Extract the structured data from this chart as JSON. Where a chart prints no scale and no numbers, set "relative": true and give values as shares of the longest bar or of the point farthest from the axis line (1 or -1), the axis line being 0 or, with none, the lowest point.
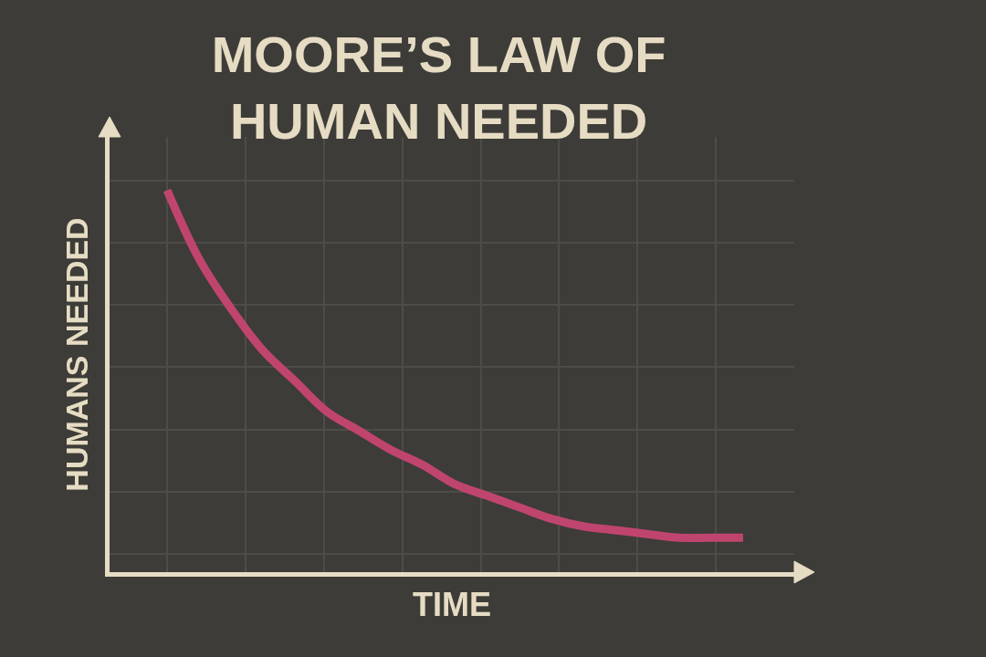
{
  "chart_data": {
    "type": "line",
    "title": "MOORE’S LAW OF\nHUMAN NEEDED",
    "xlabel": "TIME",
    "ylabel": "HUMANS NEEDED",
    "relative": true,
    "categories": [
      null,
      null,
      null,
      null,
      null,
      null,
      null,
      null,
      null,
      null,
      null,
      null,
      null,
      null,
      null,
      null,
      null,
      null,
      null
    ],
    "series": [
      {
        "color": "#c0456e",
        "values": [
          1.0,
          0.82,
          0.69,
          0.58,
          0.5,
          0.42,
          0.37,
          0.32,
          0.28,
          0.23,
          0.2,
          0.17,
          0.14,
          0.12,
          0.11,
          0.1,
          0.09,
          0.09,
          0.09
        ]
      }
    ],
    "grid": true,
    "marker": "none",
    "line_style": "solid"
  }
}
